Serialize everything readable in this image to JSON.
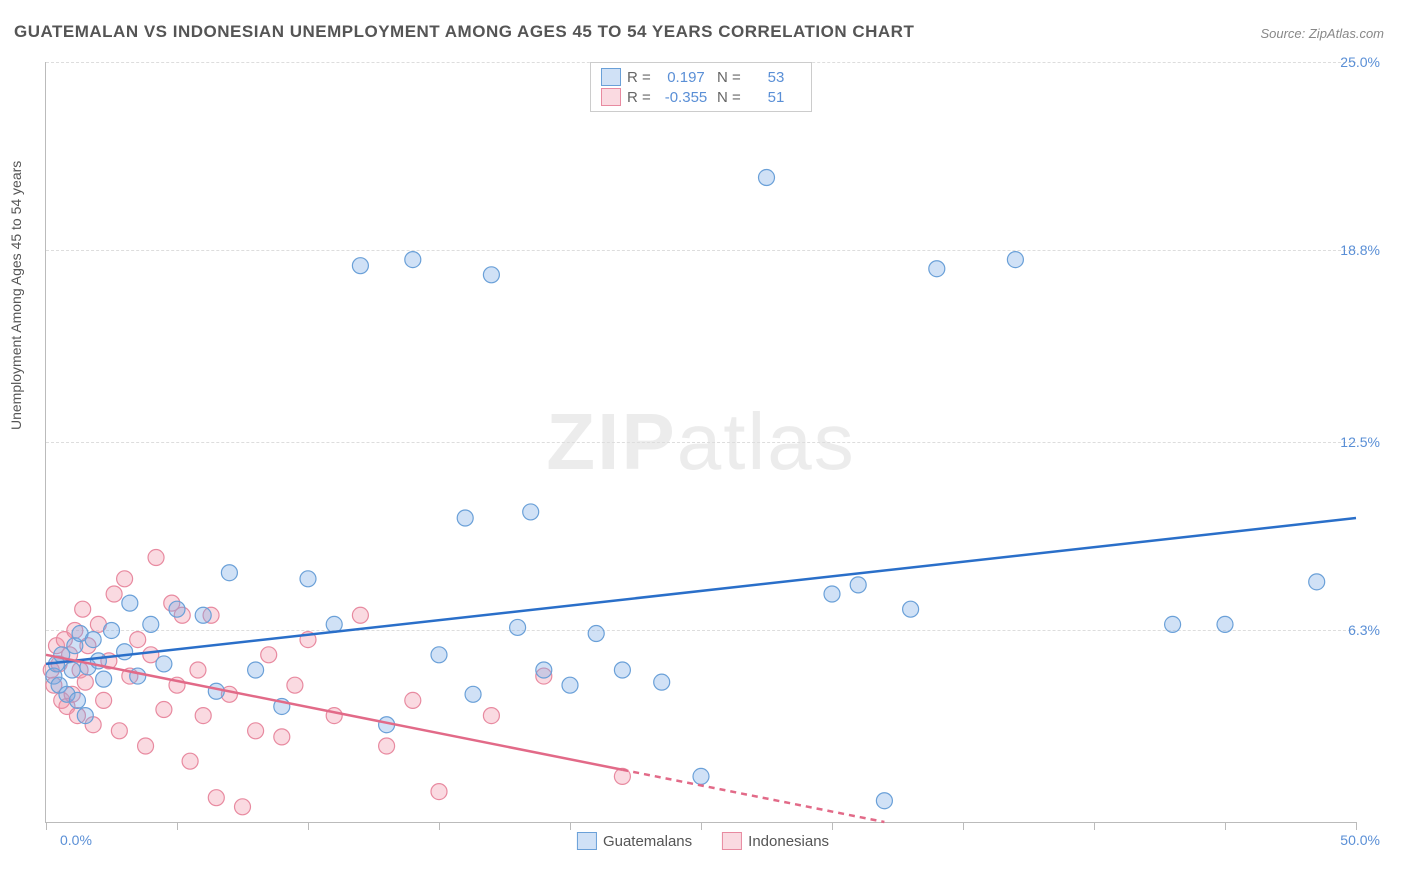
{
  "title": "GUATEMALAN VS INDONESIAN UNEMPLOYMENT AMONG AGES 45 TO 54 YEARS CORRELATION CHART",
  "source": "Source: ZipAtlas.com",
  "watermark_a": "ZIP",
  "watermark_b": "atlas",
  "ylabel": "Unemployment Among Ages 45 to 54 years",
  "chart": {
    "type": "scatter",
    "background_color": "#ffffff",
    "grid_color": "#dddddd",
    "axis_color": "#bbbbbb",
    "xlim": [
      0,
      50
    ],
    "ylim": [
      0,
      25
    ],
    "xticks": [
      0,
      5,
      10,
      15,
      20,
      25,
      30,
      35,
      40,
      45,
      50
    ],
    "xtick_labels": {
      "first": "0.0%",
      "last": "50.0%"
    },
    "yticks": [
      6.3,
      12.5,
      18.8,
      25.0
    ],
    "ytick_labels": [
      "6.3%",
      "12.5%",
      "18.8%",
      "25.0%"
    ],
    "marker_radius": 8,
    "marker_stroke_width": 1.2,
    "trend_stroke_width": 2.5,
    "tick_color": "#5a8fd6",
    "label_color": "#555555",
    "title_color": "#555555",
    "title_fontsize": 17,
    "label_fontsize": 14
  },
  "series": {
    "guatemalans": {
      "label": "Guatemalans",
      "fill": "rgba(120,170,230,0.35)",
      "stroke": "#6aa0d8",
      "line_color": "#2a6fc9",
      "R": "0.197",
      "N": "53",
      "trend": {
        "x1": 0,
        "y1": 5.2,
        "x2": 50,
        "y2": 10.0,
        "solid_until": 50
      },
      "points": [
        [
          0.3,
          4.8
        ],
        [
          0.4,
          5.2
        ],
        [
          0.5,
          4.5
        ],
        [
          0.6,
          5.5
        ],
        [
          0.8,
          4.2
        ],
        [
          1.0,
          5.0
        ],
        [
          1.1,
          5.8
        ],
        [
          1.2,
          4.0
        ],
        [
          1.3,
          6.2
        ],
        [
          1.5,
          3.5
        ],
        [
          1.6,
          5.1
        ],
        [
          1.8,
          6.0
        ],
        [
          2.0,
          5.3
        ],
        [
          2.2,
          4.7
        ],
        [
          2.5,
          6.3
        ],
        [
          3.0,
          5.6
        ],
        [
          3.2,
          7.2
        ],
        [
          3.5,
          4.8
        ],
        [
          4.0,
          6.5
        ],
        [
          4.5,
          5.2
        ],
        [
          5.0,
          7.0
        ],
        [
          6.0,
          6.8
        ],
        [
          6.5,
          4.3
        ],
        [
          7.0,
          8.2
        ],
        [
          8.0,
          5.0
        ],
        [
          9.0,
          3.8
        ],
        [
          10.0,
          8.0
        ],
        [
          11.0,
          6.5
        ],
        [
          12.0,
          18.3
        ],
        [
          13.0,
          3.2
        ],
        [
          14.0,
          18.5
        ],
        [
          15.0,
          5.5
        ],
        [
          16.0,
          10.0
        ],
        [
          16.3,
          4.2
        ],
        [
          17.0,
          18.0
        ],
        [
          18.0,
          6.4
        ],
        [
          18.5,
          10.2
        ],
        [
          19.0,
          5.0
        ],
        [
          20.0,
          4.5
        ],
        [
          21.0,
          6.2
        ],
        [
          22.0,
          5.0
        ],
        [
          23.5,
          4.6
        ],
        [
          25.0,
          1.5
        ],
        [
          27.5,
          21.2
        ],
        [
          30.0,
          7.5
        ],
        [
          31.0,
          7.8
        ],
        [
          32.0,
          0.7
        ],
        [
          33.0,
          7.0
        ],
        [
          34.0,
          18.2
        ],
        [
          37.0,
          18.5
        ],
        [
          43.0,
          6.5
        ],
        [
          45.0,
          6.5
        ],
        [
          48.5,
          7.9
        ]
      ]
    },
    "indonesians": {
      "label": "Indonesians",
      "fill": "rgba(240,150,170,0.35)",
      "stroke": "#e88aa0",
      "line_color": "#e26a88",
      "R": "-0.355",
      "N": "51",
      "trend": {
        "x1": 0,
        "y1": 5.5,
        "x2": 32,
        "y2": 0.0,
        "solid_until": 22
      },
      "points": [
        [
          0.2,
          5.0
        ],
        [
          0.3,
          4.5
        ],
        [
          0.4,
          5.8
        ],
        [
          0.5,
          5.2
        ],
        [
          0.6,
          4.0
        ],
        [
          0.7,
          6.0
        ],
        [
          0.8,
          3.8
        ],
        [
          0.9,
          5.5
        ],
        [
          1.0,
          4.2
        ],
        [
          1.1,
          6.3
        ],
        [
          1.2,
          3.5
        ],
        [
          1.3,
          5.0
        ],
        [
          1.4,
          7.0
        ],
        [
          1.5,
          4.6
        ],
        [
          1.6,
          5.8
        ],
        [
          1.8,
          3.2
        ],
        [
          2.0,
          6.5
        ],
        [
          2.2,
          4.0
        ],
        [
          2.4,
          5.3
        ],
        [
          2.6,
          7.5
        ],
        [
          2.8,
          3.0
        ],
        [
          3.0,
          8.0
        ],
        [
          3.2,
          4.8
        ],
        [
          3.5,
          6.0
        ],
        [
          3.8,
          2.5
        ],
        [
          4.0,
          5.5
        ],
        [
          4.2,
          8.7
        ],
        [
          4.5,
          3.7
        ],
        [
          4.8,
          7.2
        ],
        [
          5.0,
          4.5
        ],
        [
          5.2,
          6.8
        ],
        [
          5.5,
          2.0
        ],
        [
          5.8,
          5.0
        ],
        [
          6.0,
          3.5
        ],
        [
          6.3,
          6.8
        ],
        [
          6.5,
          0.8
        ],
        [
          7.0,
          4.2
        ],
        [
          7.5,
          0.5
        ],
        [
          8.0,
          3.0
        ],
        [
          8.5,
          5.5
        ],
        [
          9.0,
          2.8
        ],
        [
          9.5,
          4.5
        ],
        [
          10.0,
          6.0
        ],
        [
          11.0,
          3.5
        ],
        [
          12.0,
          6.8
        ],
        [
          13.0,
          2.5
        ],
        [
          14.0,
          4.0
        ],
        [
          15.0,
          1.0
        ],
        [
          17.0,
          3.5
        ],
        [
          19.0,
          4.8
        ],
        [
          22.0,
          1.5
        ]
      ]
    }
  },
  "stat_labels": {
    "R": "R =",
    "N": "N ="
  }
}
